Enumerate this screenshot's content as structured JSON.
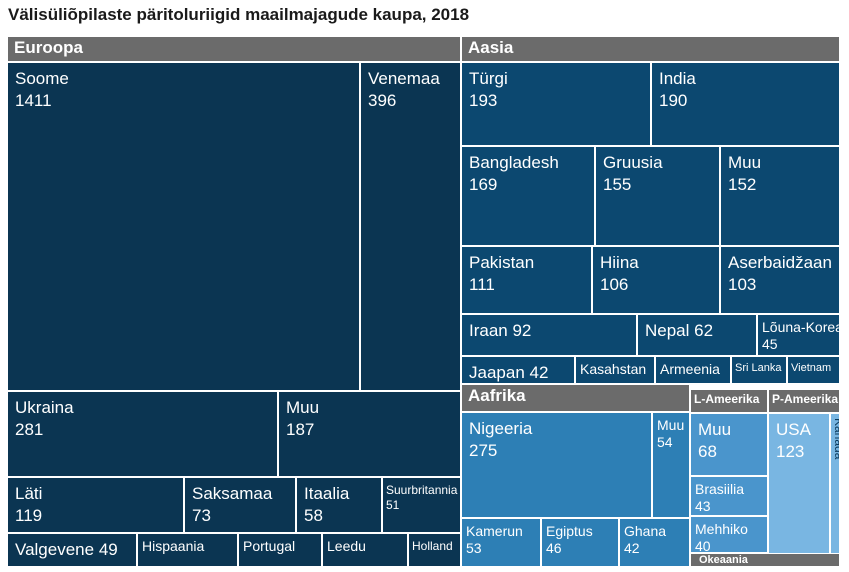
{
  "chart_data": {
    "type": "treemap",
    "title": "Välisüliõpilaste päritoluriigid maailmajagude kaupa, 2018",
    "groups": [
      {
        "name": "Euroopa",
        "color": "#0b3552",
        "items": [
          {
            "name": "Soome",
            "value": 1411
          },
          {
            "name": "Venemaa",
            "value": 396
          },
          {
            "name": "Ukraina",
            "value": 281
          },
          {
            "name": "Muu",
            "value": 187
          },
          {
            "name": "Läti",
            "value": 119
          },
          {
            "name": "Saksamaa",
            "value": 73
          },
          {
            "name": "Itaalia",
            "value": 58
          },
          {
            "name": "Suurbritannia",
            "value": 51
          },
          {
            "name": "Valgevene",
            "value": 49
          },
          {
            "name": "Hispaania",
            "value": null
          },
          {
            "name": "Portugal",
            "value": null
          },
          {
            "name": "Leedu",
            "value": null
          },
          {
            "name": "Holland",
            "value": null
          }
        ]
      },
      {
        "name": "Aasia",
        "color": "#0c4870",
        "items": [
          {
            "name": "Türgi",
            "value": 193
          },
          {
            "name": "India",
            "value": 190
          },
          {
            "name": "Bangladesh",
            "value": 169
          },
          {
            "name": "Gruusia",
            "value": 155
          },
          {
            "name": "Muu",
            "value": 152
          },
          {
            "name": "Pakistan",
            "value": 111
          },
          {
            "name": "Hiina",
            "value": 106
          },
          {
            "name": "Aserbaidžaan",
            "value": 103
          },
          {
            "name": "Iraan",
            "value": 92
          },
          {
            "name": "Nepal",
            "value": 62
          },
          {
            "name": "Lõuna-Korea",
            "value": 45
          },
          {
            "name": "Jaapan",
            "value": 42
          },
          {
            "name": "Kasahstan",
            "value": null
          },
          {
            "name": "Armeenia",
            "value": null
          },
          {
            "name": "Sri Lanka",
            "value": null
          },
          {
            "name": "Vietnam",
            "value": null
          }
        ]
      },
      {
        "name": "Aafrika",
        "color": "#2d7fb5",
        "items": [
          {
            "name": "Nigeeria",
            "value": 275
          },
          {
            "name": "Muu",
            "value": 54
          },
          {
            "name": "Kamerun",
            "value": 53
          },
          {
            "name": "Egiptus",
            "value": 46
          },
          {
            "name": "Ghana",
            "value": 42
          }
        ]
      },
      {
        "name": "L-Ameerika",
        "color": "#4a95cc",
        "items": [
          {
            "name": "Muu",
            "value": 68
          },
          {
            "name": "Brasiilia",
            "value": 43
          },
          {
            "name": "Mehhiko",
            "value": 40
          }
        ]
      },
      {
        "name": "P-Ameerika",
        "color": "#79b6e2",
        "items": [
          {
            "name": "USA",
            "value": 123
          },
          {
            "name": "Kanada",
            "value": null
          }
        ]
      },
      {
        "name": "Okeaania",
        "color": "#4a95cc",
        "items": []
      }
    ]
  }
}
